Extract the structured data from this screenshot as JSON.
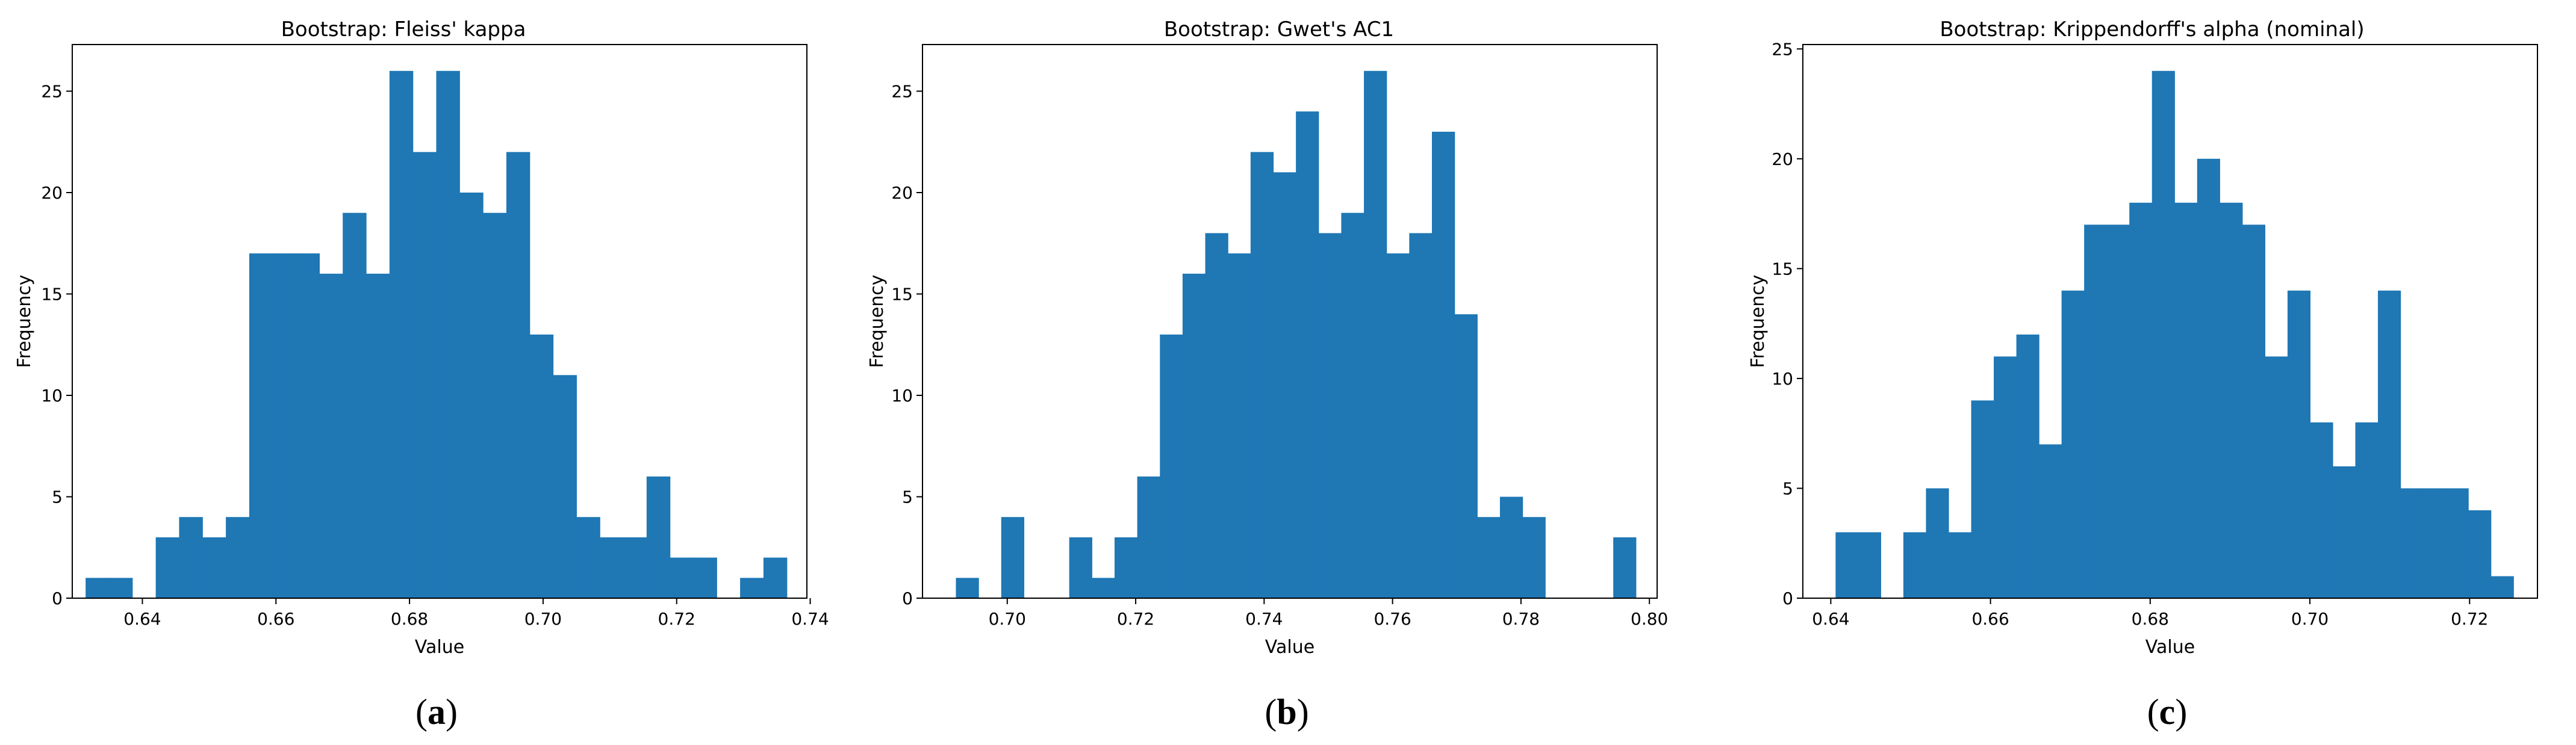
{
  "panels": [
    {
      "sublabel_open": "(",
      "sublabel_letter": "a",
      "sublabel_close": ")"
    },
    {
      "sublabel_open": "(",
      "sublabel_letter": "b",
      "sublabel_close": ")"
    },
    {
      "sublabel_open": "(",
      "sublabel_letter": "c",
      "sublabel_close": ")"
    }
  ],
  "colors": {
    "bar": "#1f77b4",
    "axis": "#000000"
  },
  "chart_data": [
    {
      "type": "bar",
      "title": "Bootstrap: Fleiss' kappa",
      "xlabel": "Value",
      "ylabel": "Frequency",
      "xlim": [
        0.6295,
        0.7395
      ],
      "ylim": [
        0,
        27.3
      ],
      "xticks": [
        0.64,
        0.66,
        0.68,
        0.7,
        0.72,
        0.74
      ],
      "yticks": [
        0,
        5,
        10,
        15,
        20,
        25
      ],
      "grid": false,
      "legend": "none",
      "bin_start": 0.6315,
      "bin_width": 0.0035,
      "values": [
        1,
        1,
        0,
        3,
        4,
        3,
        4,
        17,
        17,
        17,
        16,
        19,
        16,
        26,
        22,
        26,
        20,
        19,
        22,
        13,
        11,
        4,
        3,
        3,
        6,
        2,
        2,
        0,
        1,
        2
      ]
    },
    {
      "type": "bar",
      "title": "Bootstrap: Gwet's AC1",
      "xlabel": "Value",
      "ylabel": "Frequency",
      "xlim": [
        0.6868,
        0.8012
      ],
      "ylim": [
        0,
        27.3
      ],
      "xticks": [
        0.7,
        0.72,
        0.74,
        0.76,
        0.78,
        0.8
      ],
      "yticks": [
        0,
        5,
        10,
        15,
        20,
        25
      ],
      "grid": false,
      "legend": "none",
      "bin_start": 0.692,
      "bin_width": 0.00353,
      "values": [
        1,
        0,
        4,
        0,
        0,
        3,
        1,
        3,
        6,
        13,
        16,
        18,
        17,
        22,
        21,
        24,
        18,
        19,
        26,
        17,
        18,
        23,
        14,
        4,
        5,
        4,
        0,
        0,
        0,
        3
      ]
    },
    {
      "type": "bar",
      "title": "Bootstrap: Krippendorff's alpha (nominal)",
      "xlabel": "Value",
      "ylabel": "Frequency",
      "xlim": [
        0.6365,
        0.7285
      ],
      "ylim": [
        0,
        25.2
      ],
      "xticks": [
        0.64,
        0.66,
        0.68,
        0.7,
        0.72
      ],
      "yticks": [
        0,
        5,
        10,
        15,
        20,
        25
      ],
      "grid": false,
      "legend": "none",
      "bin_start": 0.6406,
      "bin_width": 0.00283,
      "values": [
        3,
        3,
        0,
        3,
        5,
        3,
        9,
        11,
        12,
        7,
        14,
        17,
        17,
        18,
        24,
        18,
        20,
        18,
        17,
        11,
        14,
        8,
        6,
        8,
        14,
        5,
        5,
        5,
        4,
        1
      ]
    }
  ]
}
